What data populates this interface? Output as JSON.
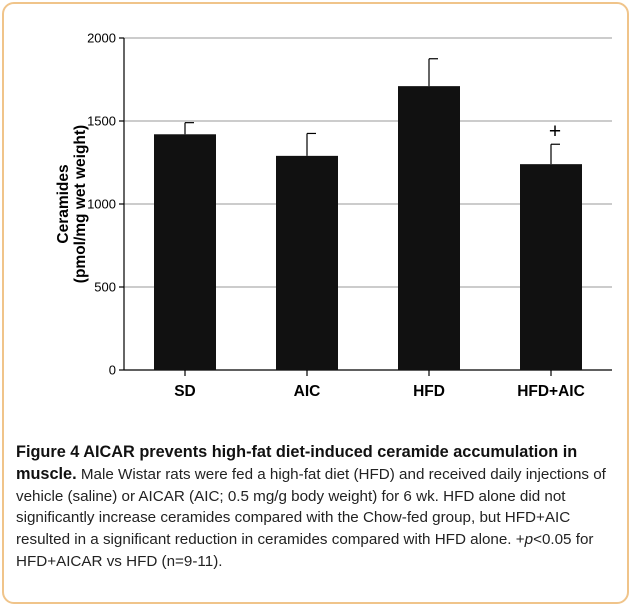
{
  "chart_data": {
    "type": "bar",
    "categories": [
      "SD",
      "AIC",
      "HFD",
      "HFD+AIC"
    ],
    "values": [
      1420,
      1290,
      1710,
      1240
    ],
    "errors": [
      70,
      135,
      165,
      120
    ],
    "annotations": [
      {
        "category": "HFD+AIC",
        "text": "+"
      }
    ],
    "ylabel_lines": [
      "Ceramides",
      "(pmol/mg wet weight)"
    ],
    "ylim": [
      0,
      2000
    ],
    "yticks": [
      0,
      500,
      1000,
      1500,
      2000
    ],
    "ytick_labels": [
      "0",
      "500",
      "1000",
      "1500",
      "2000"
    ],
    "grid": true,
    "legend": "none",
    "bar_color": "#111111"
  },
  "caption": {
    "title": "Figure 4 AICAR prevents high-fat diet-induced ceramide accumulation in muscle.",
    "body_1": " Male Wistar rats were fed a high-fat diet (HFD) and received daily injections of vehicle (saline) or AICAR (AIC; 0.5 mg/g body weight) for 6 wk. HFD alone did not significantly increase ceramides compared with the Chow-fed group, but HFD+AIC resulted in a significant reduction in ceramides compared with HFD alone. +",
    "p_symbol": "p",
    "body_2": "<0.05 for HFD+AICAR vs HFD (n=9-11)."
  }
}
